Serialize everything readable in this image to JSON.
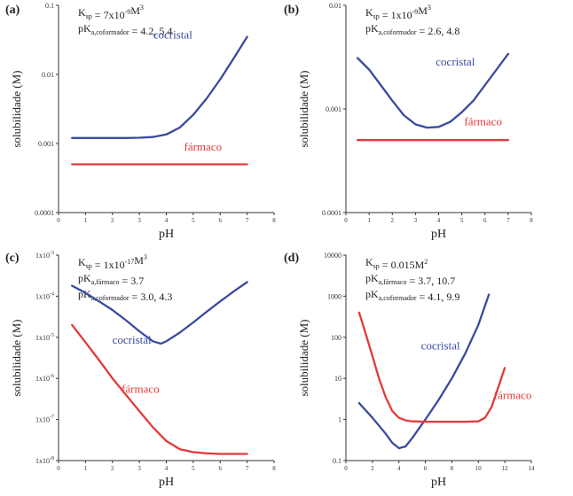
{
  "chart_data": [
    {
      "type": "line",
      "panel_label": "(a)",
      "xlabel": "pH",
      "ylabel": "solubilidade (M)",
      "xlim": [
        0,
        8
      ],
      "ylim": [
        0.0001,
        0.1
      ],
      "yscale": "log",
      "x_ticks": [
        0,
        1,
        2,
        3,
        4,
        5,
        6,
        7,
        8
      ],
      "y_ticks": [
        {
          "v": 0.0001,
          "label": "0.0001"
        },
        {
          "v": 0.001,
          "label": "0.001"
        },
        {
          "v": 0.01,
          "label": "0.01"
        },
        {
          "v": 0.1,
          "label": "0.1"
        }
      ],
      "annotation_lines": [
        [
          {
            "t": "K",
            "sub": "sp"
          },
          {
            "t": " = 7x10"
          },
          {
            "t": "-9",
            "sup": true
          },
          {
            "t": "M"
          },
          {
            "t": "3",
            "sup": true
          }
        ],
        [
          {
            "t": "pK",
            "sub": "a,coformador"
          },
          {
            "t": " = 4.2, 5.4"
          }
        ]
      ],
      "series": [
        {
          "name": "cocristal",
          "color": "#3a4a9e",
          "x": [
            0.5,
            1,
            1.5,
            2,
            2.5,
            3,
            3.5,
            4,
            4.5,
            5,
            5.5,
            6,
            6.5,
            7
          ],
          "y": [
            0.0012,
            0.0012,
            0.0012,
            0.0012,
            0.0012,
            0.00121,
            0.00124,
            0.00135,
            0.0017,
            0.0026,
            0.0045,
            0.0085,
            0.017,
            0.035
          ]
        },
        {
          "name": "fármaco",
          "color": "#e23a3a",
          "x": [
            0.5,
            7
          ],
          "y": [
            0.0005,
            0.0005
          ]
        }
      ]
    },
    {
      "type": "line",
      "panel_label": "(b)",
      "xlabel": "pH",
      "ylabel": "solubilidade (M)",
      "xlim": [
        0,
        8
      ],
      "ylim": [
        0.0001,
        0.01
      ],
      "yscale": "log",
      "x_ticks": [
        0,
        1,
        2,
        3,
        4,
        5,
        6,
        7,
        8
      ],
      "y_ticks": [
        {
          "v": 0.0001,
          "label": "0.0001"
        },
        {
          "v": 0.001,
          "label": "0.001"
        },
        {
          "v": 0.01,
          "label": "0.01"
        }
      ],
      "annotation_lines": [
        [
          {
            "t": "K",
            "sub": "sp"
          },
          {
            "t": " = 1x10"
          },
          {
            "t": "-9",
            "sup": true
          },
          {
            "t": "M"
          },
          {
            "t": "3",
            "sup": true
          }
        ],
        [
          {
            "t": "pK",
            "sub": "a,coformador"
          },
          {
            "t": " = 2.6, 4.8"
          }
        ]
      ],
      "series": [
        {
          "name": "cocristal",
          "color": "#3a4a9e",
          "x": [
            0.5,
            1,
            1.5,
            2,
            2.5,
            3,
            3.5,
            4,
            4.5,
            5,
            5.5,
            6,
            6.5,
            7
          ],
          "y": [
            0.0031,
            0.0024,
            0.0017,
            0.0012,
            0.00087,
            0.00071,
            0.00066,
            0.00067,
            0.00075,
            0.00093,
            0.0012,
            0.0017,
            0.0024,
            0.0034
          ]
        },
        {
          "name": "fármaco",
          "color": "#e23a3a",
          "x": [
            0.5,
            7
          ],
          "y": [
            0.0005,
            0.0005
          ]
        }
      ]
    },
    {
      "type": "line",
      "panel_label": "(c)",
      "xlabel": "pH",
      "ylabel": "solubilidade (M)",
      "xlim": [
        0,
        8
      ],
      "ylim": [
        1e-08,
        0.001
      ],
      "yscale": "log",
      "x_ticks": [
        0,
        1,
        2,
        3,
        4,
        5,
        6,
        7,
        8
      ],
      "y_ticks": [
        {
          "v": 1e-08,
          "base": "1x10",
          "exp": "-8"
        },
        {
          "v": 1e-07,
          "base": "1x10",
          "exp": "-7"
        },
        {
          "v": 1e-06,
          "base": "1x10",
          "exp": "-6"
        },
        {
          "v": 1e-05,
          "base": "1x10",
          "exp": "-5"
        },
        {
          "v": 0.0001,
          "base": "1x10",
          "exp": "-4"
        },
        {
          "v": 0.001,
          "base": "1x10",
          "exp": "-3"
        }
      ],
      "annotation_lines": [
        [
          {
            "t": "K",
            "sub": "sp"
          },
          {
            "t": " = 1x10"
          },
          {
            "t": "-17",
            "sup": true
          },
          {
            "t": "M"
          },
          {
            "t": "3",
            "sup": true
          }
        ],
        [
          {
            "t": "pK",
            "sub": "a,fármaco"
          },
          {
            "t": " = 3.7"
          }
        ],
        [
          {
            "t": "pK",
            "sub": "a,coformador"
          },
          {
            "t": " = 3.0, 4.3"
          }
        ]
      ],
      "series": [
        {
          "name": "cocristal",
          "color": "#3a4a9e",
          "x": [
            0.5,
            1,
            1.5,
            2,
            2.5,
            3,
            3.5,
            3.8,
            4,
            4.5,
            5,
            5.5,
            6,
            6.5,
            7
          ],
          "y": [
            0.00018,
            0.00012,
            7.5e-05,
            4.6e-05,
            2.6e-05,
            1.4e-05,
            8e-06,
            7e-06,
            8e-06,
            1.3e-05,
            2.3e-05,
            4.2e-05,
            7.5e-05,
            0.00013,
            0.00022
          ]
        },
        {
          "name": "fármaco",
          "color": "#e23a3a",
          "x": [
            0.5,
            1,
            1.5,
            2,
            2.5,
            3,
            3.5,
            4,
            4.5,
            5,
            5.5,
            6,
            6.5,
            7
          ],
          "y": [
            2e-05,
            7.5e-06,
            2.8e-06,
            1e-06,
            4e-07,
            1.6e-07,
            6.5e-08,
            3e-08,
            1.9e-08,
            1.6e-08,
            1.5e-08,
            1.45e-08,
            1.45e-08,
            1.45e-08
          ]
        }
      ]
    },
    {
      "type": "line",
      "panel_label": "(d)",
      "xlabel": "pH",
      "ylabel": "solubilidade (M)",
      "xlim": [
        0,
        14
      ],
      "ylim": [
        0.1,
        10000
      ],
      "yscale": "log",
      "x_ticks": [
        0,
        2,
        4,
        6,
        8,
        10,
        12,
        14
      ],
      "y_ticks": [
        {
          "v": 0.1,
          "label": "0.1"
        },
        {
          "v": 1,
          "label": "1"
        },
        {
          "v": 10,
          "label": "10"
        },
        {
          "v": 100,
          "label": "100"
        },
        {
          "v": 1000,
          "label": "1000"
        },
        {
          "v": 10000,
          "label": "10000"
        }
      ],
      "annotation_lines": [
        [
          {
            "t": "K",
            "sub": "sp"
          },
          {
            "t": " = 0.015M"
          },
          {
            "t": "2",
            "sup": true
          }
        ],
        [
          {
            "t": "pK",
            "sub": "a,fármaco"
          },
          {
            "t": " = 3.7, 10.7"
          }
        ],
        [
          {
            "t": "pK",
            "sub": "a,coformador"
          },
          {
            "t": " = 4.1, 9.9"
          }
        ]
      ],
      "series": [
        {
          "name": "cocristal",
          "color": "#3a4a9e",
          "x": [
            1,
            2,
            3,
            3.5,
            4,
            4.5,
            5,
            6,
            7,
            8,
            9,
            10,
            10.8
          ],
          "y": [
            2.5,
            1.1,
            0.45,
            0.27,
            0.2,
            0.22,
            0.35,
            1.0,
            3.0,
            10,
            40,
            200,
            1100
          ]
        },
        {
          "name": "fármaco",
          "color": "#e23a3a",
          "x": [
            1,
            1.5,
            2,
            2.5,
            3,
            3.5,
            4,
            4.5,
            5,
            6,
            7,
            8,
            9,
            10,
            10.5,
            11,
            11.5,
            12
          ],
          "y": [
            400,
            120,
            35,
            10,
            3.5,
            1.6,
            1.1,
            0.95,
            0.9,
            0.88,
            0.88,
            0.88,
            0.88,
            0.9,
            1.1,
            2.0,
            6.0,
            18
          ]
        }
      ]
    }
  ]
}
